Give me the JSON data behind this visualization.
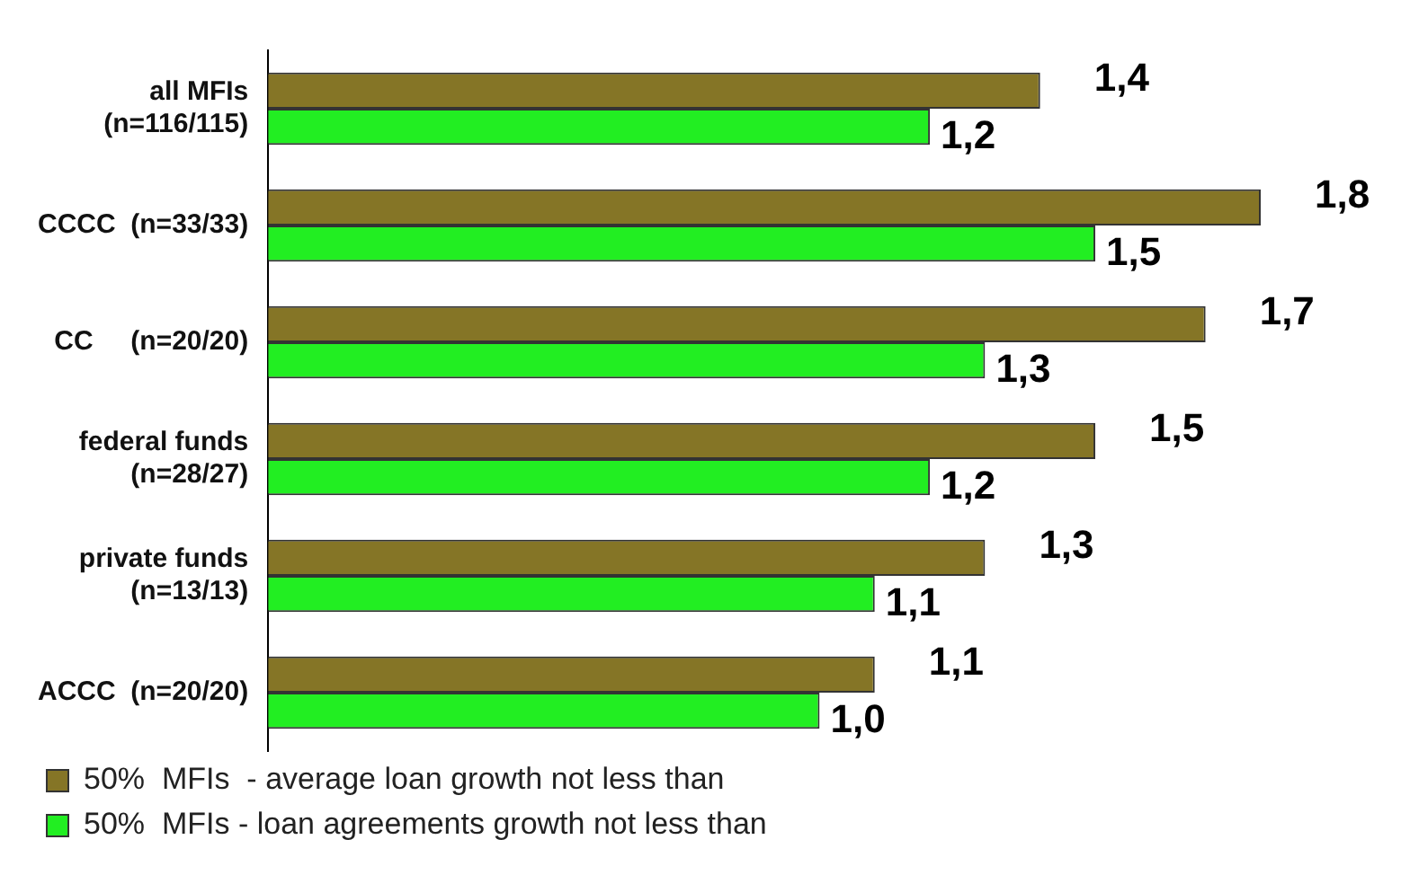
{
  "chart_data": {
    "type": "bar",
    "orientation": "horizontal",
    "categories": [
      "all MFIs\n(n=116/115)",
      "CCCC  (n=33/33)",
      "CC     (n=20/20)",
      "federal funds\n(n=28/27)",
      "private funds\n(n=13/13)",
      "ACCC  (n=20/20)"
    ],
    "series": [
      {
        "name": "50%  MFIs  - average loan growth not less than",
        "color": "#857526",
        "values": [
          1.4,
          1.8,
          1.7,
          1.5,
          1.3,
          1.1
        ],
        "value_labels": [
          "1,4",
          "1,8",
          "1,7",
          "1,5",
          "1,3",
          "1,1"
        ]
      },
      {
        "name": "50%  MFIs - loan agreements growth not less than",
        "color": "#22ee22",
        "values": [
          1.2,
          1.5,
          1.3,
          1.2,
          1.1,
          1.0
        ],
        "value_labels": [
          "1,2",
          "1,5",
          "1,3",
          "1,2",
          "1,1",
          "1,0"
        ]
      }
    ],
    "legend": "bottom"
  }
}
